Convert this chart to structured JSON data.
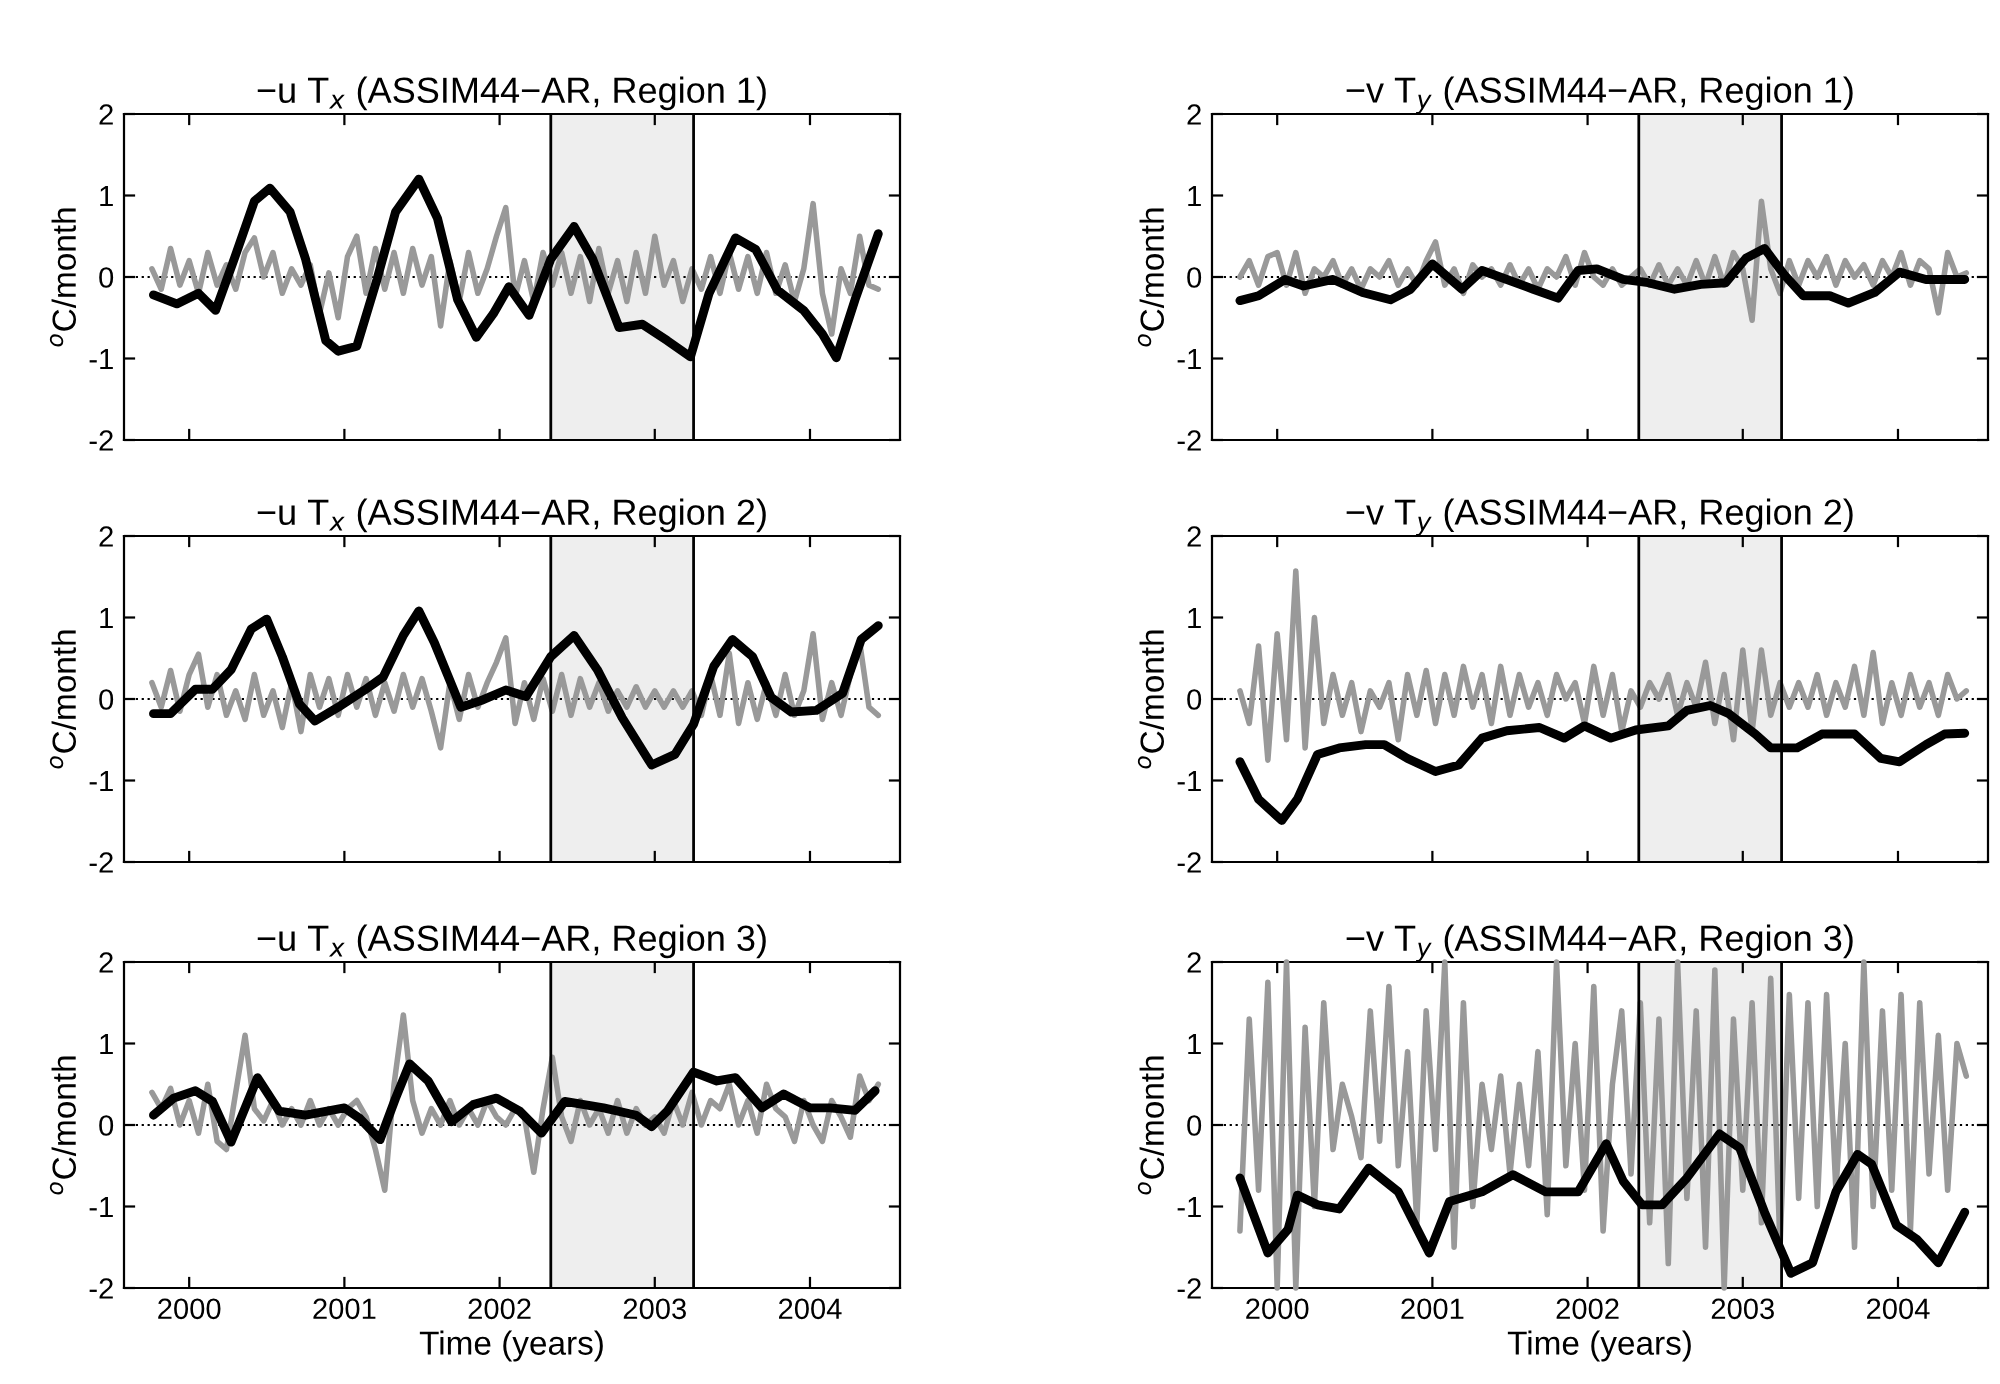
{
  "chart_data": [
    {
      "type": "line",
      "title": "−u T$_{x}$ (ASSIM44−AR, Region 1)",
      "ylabel": "$^{o}$C/month",
      "xlim": [
        1999.58,
        2004.58
      ],
      "xticks": [
        2000,
        2001,
        2002,
        2003,
        2004
      ],
      "ylim": [
        -2,
        2
      ],
      "yticks": [
        -2,
        -1,
        0,
        1,
        2
      ],
      "tick_labels": "y",
      "bands": [
        {
          "axis": "x",
          "from": 2002.33,
          "to": 2003.25,
          "color": "#eeeeee"
        }
      ],
      "ref_lines": [
        {
          "axis": "x",
          "value": 2002.33,
          "color": "#000000",
          "line_style": "solid"
        },
        {
          "axis": "x",
          "value": 2003.25,
          "color": "#000000",
          "line_style": "solid"
        },
        {
          "axis": "y",
          "value": 0,
          "color": "#000000",
          "line_style": "dotted"
        }
      ],
      "series": [
        {
          "color": "#999999",
          "x": [
            1999.76,
            1999.82,
            1999.88,
            1999.94,
            2000.0,
            2000.06,
            2000.12,
            2000.18,
            2000.24,
            2000.3,
            2000.36,
            2000.42,
            2000.48,
            2000.54,
            2000.6,
            2000.66,
            2000.72,
            2000.78,
            2000.84,
            2000.9,
            2000.96,
            2001.02,
            2001.08,
            2001.14,
            2001.2,
            2001.26,
            2001.32,
            2001.38,
            2001.44,
            2001.5,
            2001.56,
            2001.62,
            2001.68,
            2001.74,
            2001.8,
            2001.86,
            2001.92,
            2001.98,
            2002.04,
            2002.1,
            2002.16,
            2002.22,
            2002.28,
            2002.34,
            2002.4,
            2002.46,
            2002.52,
            2002.58,
            2002.64,
            2002.7,
            2002.76,
            2002.82,
            2002.88,
            2002.94,
            2003.0,
            2003.06,
            2003.12,
            2003.18,
            2003.24,
            2003.3,
            2003.36,
            2003.42,
            2003.48,
            2003.54,
            2003.6,
            2003.66,
            2003.72,
            2003.78,
            2003.84,
            2003.9,
            2003.96,
            2004.02,
            2004.08,
            2004.14,
            2004.2,
            2004.26,
            2004.32,
            2004.38,
            2004.44
          ],
          "values": [
            0.1,
            -0.15,
            0.35,
            -0.1,
            0.2,
            -0.2,
            0.3,
            -0.1,
            0.15,
            -0.15,
            0.3,
            0.48,
            0.0,
            0.3,
            -0.2,
            0.1,
            -0.1,
            0.15,
            -0.45,
            0.05,
            -0.5,
            0.25,
            0.5,
            -0.2,
            0.35,
            -0.15,
            0.3,
            -0.2,
            0.35,
            -0.1,
            0.25,
            -0.6,
            0.2,
            -0.3,
            0.3,
            -0.2,
            0.1,
            0.5,
            0.85,
            -0.25,
            0.2,
            -0.3,
            0.3,
            -0.1,
            0.3,
            -0.2,
            0.25,
            -0.3,
            0.35,
            -0.2,
            0.2,
            -0.3,
            0.3,
            -0.2,
            0.5,
            -0.1,
            0.2,
            -0.3,
            0.1,
            -0.15,
            0.25,
            -0.2,
            0.3,
            -0.15,
            0.25,
            -0.2,
            0.3,
            -0.2,
            0.15,
            -0.3,
            0.1,
            0.9,
            -0.2,
            -0.7,
            0.1,
            -0.2,
            0.5,
            -0.1,
            -0.15
          ]
        },
        {
          "color": "#000000",
          "x": [
            1999.77,
            1999.92,
            2000.06,
            2000.17,
            2000.29,
            2000.42,
            2000.52,
            2000.65,
            2000.75,
            2000.88,
            2000.96,
            2001.08,
            2001.21,
            2001.33,
            2001.48,
            2001.6,
            2001.73,
            2001.85,
            2001.96,
            2002.06,
            2002.19,
            2002.33,
            2002.48,
            2002.6,
            2002.77,
            2002.92,
            2003.08,
            2003.23,
            2003.35,
            2003.52,
            2003.65,
            2003.79,
            2003.96,
            2004.08,
            2004.17,
            2004.29,
            2004.44
          ],
          "values": [
            -0.22,
            -0.33,
            -0.2,
            -0.41,
            0.22,
            0.93,
            1.09,
            0.8,
            0.22,
            -0.78,
            -0.91,
            -0.85,
            -0.03,
            0.8,
            1.2,
            0.72,
            -0.28,
            -0.74,
            -0.45,
            -0.12,
            -0.47,
            0.22,
            0.62,
            0.22,
            -0.62,
            -0.58,
            -0.78,
            -0.98,
            -0.2,
            0.48,
            0.34,
            -0.16,
            -0.41,
            -0.7,
            -0.99,
            -0.28,
            0.53
          ]
        }
      ]
    },
    {
      "type": "line",
      "title": "−v T$_{y}$ (ASSIM44−AR, Region 1)",
      "ylabel": "$^{o}$C/month",
      "xlim": [
        1999.58,
        2004.58
      ],
      "xticks": [
        2000,
        2001,
        2002,
        2003,
        2004
      ],
      "ylim": [
        -2,
        2
      ],
      "yticks": [
        -2,
        -1,
        0,
        1,
        2
      ],
      "tick_labels": "y",
      "bands": [
        {
          "axis": "x",
          "from": 2002.33,
          "to": 2003.25,
          "color": "#eeeeee"
        }
      ],
      "ref_lines": [
        {
          "axis": "x",
          "value": 2002.33,
          "color": "#000000",
          "line_style": "solid"
        },
        {
          "axis": "x",
          "value": 2003.25,
          "color": "#000000",
          "line_style": "solid"
        },
        {
          "axis": "y",
          "value": 0,
          "color": "#000000",
          "line_style": "dotted"
        }
      ],
      "series": [
        {
          "color": "#999999",
          "x": [
            1999.76,
            1999.82,
            1999.88,
            1999.94,
            2000.0,
            2000.06,
            2000.12,
            2000.18,
            2000.24,
            2000.3,
            2000.36,
            2000.42,
            2000.48,
            2000.54,
            2000.6,
            2000.66,
            2000.72,
            2000.78,
            2000.84,
            2000.9,
            2000.96,
            2001.02,
            2001.08,
            2001.14,
            2001.2,
            2001.26,
            2001.32,
            2001.38,
            2001.44,
            2001.5,
            2001.56,
            2001.62,
            2001.68,
            2001.74,
            2001.8,
            2001.86,
            2001.92,
            2001.98,
            2002.04,
            2002.1,
            2002.16,
            2002.22,
            2002.28,
            2002.34,
            2002.4,
            2002.46,
            2002.52,
            2002.58,
            2002.64,
            2002.7,
            2002.76,
            2002.82,
            2002.88,
            2002.94,
            2003.0,
            2003.06,
            2003.12,
            2003.18,
            2003.24,
            2003.3,
            2003.36,
            2003.42,
            2003.48,
            2003.54,
            2003.6,
            2003.66,
            2003.72,
            2003.78,
            2003.84,
            2003.9,
            2003.96,
            2004.02,
            2004.08,
            2004.14,
            2004.2,
            2004.26,
            2004.32,
            2004.38,
            2004.44
          ],
          "values": [
            0.0,
            0.2,
            -0.1,
            0.25,
            0.3,
            -0.1,
            0.3,
            -0.2,
            0.1,
            0.0,
            0.2,
            -0.1,
            0.1,
            -0.15,
            0.1,
            0.0,
            0.2,
            -0.1,
            0.1,
            -0.1,
            0.2,
            0.43,
            -0.1,
            0.1,
            -0.2,
            0.15,
            0.0,
            0.1,
            -0.1,
            0.15,
            -0.1,
            0.1,
            -0.15,
            0.1,
            0.0,
            0.25,
            -0.1,
            0.3,
            0.0,
            -0.1,
            0.1,
            -0.1,
            0.0,
            0.1,
            -0.1,
            0.15,
            -0.1,
            0.1,
            -0.1,
            0.2,
            -0.1,
            0.25,
            -0.1,
            0.3,
            0.1,
            -0.53,
            0.93,
            0.1,
            -0.2,
            0.2,
            -0.1,
            0.2,
            0.0,
            0.25,
            -0.1,
            0.2,
            0.0,
            0.15,
            -0.1,
            0.2,
            0.0,
            0.3,
            -0.1,
            0.2,
            0.1,
            -0.44,
            0.3,
            0.0,
            0.05
          ]
        },
        {
          "color": "#000000",
          "x": [
            1999.76,
            1999.88,
            2000.05,
            2000.17,
            2000.36,
            2000.55,
            2000.73,
            2000.86,
            2001.0,
            2001.19,
            2001.32,
            2001.48,
            2001.65,
            2001.81,
            2001.94,
            2002.06,
            2002.23,
            2002.39,
            2002.56,
            2002.73,
            2002.89,
            2003.02,
            2003.14,
            2003.27,
            2003.39,
            2003.56,
            2003.68,
            2003.85,
            2004.01,
            2004.18,
            2004.43
          ],
          "values": [
            -0.29,
            -0.23,
            -0.03,
            -0.11,
            -0.03,
            -0.19,
            -0.28,
            -0.15,
            0.16,
            -0.15,
            0.08,
            -0.03,
            -0.15,
            -0.26,
            0.08,
            0.1,
            -0.03,
            -0.07,
            -0.15,
            -0.09,
            -0.07,
            0.23,
            0.35,
            0.02,
            -0.23,
            -0.23,
            -0.32,
            -0.19,
            0.06,
            -0.03,
            -0.03
          ]
        }
      ]
    },
    {
      "type": "line",
      "title": "−u T$_{x}$ (ASSIM44−AR, Region 2)",
      "ylabel": "$^{o}$C/month",
      "xlim": [
        1999.58,
        2004.58
      ],
      "xticks": [
        2000,
        2001,
        2002,
        2003,
        2004
      ],
      "ylim": [
        -2,
        2
      ],
      "yticks": [
        -2,
        -1,
        0,
        1,
        2
      ],
      "tick_labels": "y",
      "bands": [
        {
          "axis": "x",
          "from": 2002.33,
          "to": 2003.25,
          "color": "#eeeeee"
        }
      ],
      "ref_lines": [
        {
          "axis": "x",
          "value": 2002.33,
          "color": "#000000",
          "line_style": "solid"
        },
        {
          "axis": "x",
          "value": 2003.25,
          "color": "#000000",
          "line_style": "solid"
        },
        {
          "axis": "y",
          "value": 0,
          "color": "#000000",
          "line_style": "dotted"
        }
      ],
      "series": [
        {
          "color": "#999999",
          "x": [
            1999.76,
            1999.82,
            1999.88,
            1999.94,
            2000.0,
            2000.06,
            2000.12,
            2000.18,
            2000.24,
            2000.3,
            2000.36,
            2000.42,
            2000.48,
            2000.54,
            2000.6,
            2000.66,
            2000.72,
            2000.78,
            2000.84,
            2000.9,
            2000.96,
            2001.02,
            2001.08,
            2001.14,
            2001.2,
            2001.26,
            2001.32,
            2001.38,
            2001.44,
            2001.5,
            2001.56,
            2001.62,
            2001.68,
            2001.74,
            2001.8,
            2001.86,
            2001.92,
            2001.98,
            2002.04,
            2002.1,
            2002.16,
            2002.22,
            2002.28,
            2002.34,
            2002.4,
            2002.46,
            2002.52,
            2002.58,
            2002.64,
            2002.7,
            2002.76,
            2002.82,
            2002.88,
            2002.94,
            2003.0,
            2003.06,
            2003.12,
            2003.18,
            2003.24,
            2003.3,
            2003.36,
            2003.42,
            2003.48,
            2003.54,
            2003.6,
            2003.66,
            2003.72,
            2003.78,
            2003.84,
            2003.9,
            2003.96,
            2004.02,
            2004.08,
            2004.14,
            2004.2,
            2004.26,
            2004.32,
            2004.38,
            2004.44
          ],
          "values": [
            0.2,
            -0.1,
            0.35,
            -0.15,
            0.3,
            0.55,
            -0.1,
            0.3,
            -0.2,
            0.1,
            -0.25,
            0.3,
            -0.2,
            0.1,
            -0.35,
            0.2,
            -0.4,
            0.3,
            -0.1,
            0.25,
            -0.2,
            0.3,
            -0.1,
            0.25,
            -0.2,
            0.2,
            -0.15,
            0.3,
            -0.1,
            0.25,
            -0.15,
            -0.6,
            0.2,
            -0.25,
            0.3,
            -0.1,
            0.2,
            0.45,
            0.75,
            -0.3,
            0.2,
            -0.25,
            0.25,
            -0.15,
            0.3,
            -0.2,
            0.25,
            -0.1,
            0.2,
            -0.15,
            0.1,
            -0.1,
            0.15,
            -0.1,
            0.1,
            -0.1,
            0.1,
            -0.1,
            0.1,
            -0.2,
            0.3,
            -0.2,
            0.56,
            -0.3,
            0.2,
            -0.25,
            0.2,
            -0.2,
            0.3,
            -0.2,
            0.1,
            0.8,
            -0.25,
            0.2,
            -0.2,
            0.3,
            0.7,
            -0.1,
            -0.2
          ]
        },
        {
          "color": "#000000",
          "x": [
            1999.77,
            1999.88,
            2000.04,
            2000.15,
            2000.27,
            2000.4,
            2000.5,
            2000.6,
            2000.71,
            2000.81,
            2000.96,
            2001.13,
            2001.25,
            2001.38,
            2001.48,
            2001.58,
            2001.75,
            2001.88,
            2002.04,
            2002.17,
            2002.33,
            2002.48,
            2002.63,
            2002.79,
            2002.98,
            2003.13,
            2003.25,
            2003.38,
            2003.5,
            2003.63,
            2003.75,
            2003.88,
            2004.04,
            2004.21,
            2004.33,
            2004.44
          ],
          "values": [
            -0.18,
            -0.18,
            0.12,
            0.12,
            0.36,
            0.86,
            0.98,
            0.52,
            -0.06,
            -0.27,
            -0.1,
            0.11,
            0.27,
            0.78,
            1.08,
            0.69,
            -0.1,
            -0.02,
            0.11,
            0.03,
            0.52,
            0.78,
            0.36,
            -0.23,
            -0.81,
            -0.68,
            -0.31,
            0.4,
            0.73,
            0.52,
            0.02,
            -0.16,
            -0.14,
            0.07,
            0.73,
            0.9
          ]
        }
      ]
    },
    {
      "type": "line",
      "title": "−v T$_{y}$ (ASSIM44−AR, Region 2)",
      "ylabel": "$^{o}$C/month",
      "xlim": [
        1999.58,
        2004.58
      ],
      "xticks": [
        2000,
        2001,
        2002,
        2003,
        2004
      ],
      "ylim": [
        -2,
        2
      ],
      "yticks": [
        -2,
        -1,
        0,
        1,
        2
      ],
      "tick_labels": "y",
      "bands": [
        {
          "axis": "x",
          "from": 2002.33,
          "to": 2003.25,
          "color": "#eeeeee"
        }
      ],
      "ref_lines": [
        {
          "axis": "x",
          "value": 2002.33,
          "color": "#000000",
          "line_style": "solid"
        },
        {
          "axis": "x",
          "value": 2003.25,
          "color": "#000000",
          "line_style": "solid"
        },
        {
          "axis": "y",
          "value": 0,
          "color": "#000000",
          "line_style": "dotted"
        }
      ],
      "series": [
        {
          "color": "#999999",
          "x": [
            1999.76,
            1999.82,
            1999.88,
            1999.94,
            2000.0,
            2000.06,
            2000.12,
            2000.18,
            2000.24,
            2000.3,
            2000.36,
            2000.42,
            2000.48,
            2000.54,
            2000.6,
            2000.66,
            2000.72,
            2000.78,
            2000.84,
            2000.9,
            2000.96,
            2001.02,
            2001.08,
            2001.14,
            2001.2,
            2001.26,
            2001.32,
            2001.38,
            2001.44,
            2001.5,
            2001.56,
            2001.62,
            2001.68,
            2001.74,
            2001.8,
            2001.86,
            2001.92,
            2001.98,
            2002.04,
            2002.1,
            2002.16,
            2002.22,
            2002.28,
            2002.34,
            2002.4,
            2002.46,
            2002.52,
            2002.58,
            2002.64,
            2002.7,
            2002.76,
            2002.82,
            2002.88,
            2002.94,
            2003.0,
            2003.06,
            2003.12,
            2003.18,
            2003.24,
            2003.3,
            2003.36,
            2003.42,
            2003.48,
            2003.54,
            2003.6,
            2003.66,
            2003.72,
            2003.78,
            2003.84,
            2003.9,
            2003.96,
            2004.02,
            2004.08,
            2004.14,
            2004.2,
            2004.26,
            2004.32,
            2004.38,
            2004.44
          ],
          "values": [
            0.1,
            -0.3,
            0.65,
            -0.75,
            0.8,
            -0.5,
            1.57,
            -0.6,
            1.0,
            -0.3,
            0.3,
            -0.2,
            0.2,
            -0.4,
            0.1,
            -0.1,
            0.2,
            -0.5,
            0.3,
            -0.2,
            0.35,
            -0.3,
            0.3,
            -0.2,
            0.4,
            -0.1,
            0.3,
            -0.3,
            0.4,
            -0.2,
            0.3,
            -0.1,
            0.2,
            -0.2,
            0.3,
            0.0,
            0.2,
            -0.3,
            0.4,
            -0.2,
            0.3,
            -0.4,
            0.1,
            -0.1,
            0.2,
            0.0,
            0.3,
            -0.2,
            0.2,
            -0.1,
            0.45,
            -0.3,
            0.3,
            -0.5,
            0.6,
            -0.4,
            0.6,
            -0.2,
            0.2,
            -0.1,
            0.2,
            -0.1,
            0.3,
            -0.2,
            0.2,
            -0.1,
            0.4,
            -0.2,
            0.57,
            -0.3,
            0.2,
            -0.2,
            0.3,
            -0.1,
            0.2,
            -0.2,
            0.3,
            0.0,
            0.1
          ]
        },
        {
          "color": "#000000",
          "x": [
            1999.76,
            1999.88,
            2000.03,
            2000.13,
            2000.26,
            2000.4,
            2000.57,
            2000.69,
            2000.84,
            2001.02,
            2001.17,
            2001.32,
            2001.48,
            2001.69,
            2001.85,
            2001.98,
            2002.15,
            2002.31,
            2002.52,
            2002.64,
            2002.79,
            2002.91,
            2003.08,
            2003.18,
            2003.35,
            2003.51,
            2003.72,
            2003.89,
            2004.01,
            2004.18,
            2004.3,
            2004.43
          ],
          "values": [
            -0.77,
            -1.23,
            -1.49,
            -1.23,
            -0.68,
            -0.6,
            -0.56,
            -0.56,
            -0.73,
            -0.89,
            -0.81,
            -0.48,
            -0.39,
            -0.35,
            -0.48,
            -0.33,
            -0.48,
            -0.38,
            -0.33,
            -0.14,
            -0.08,
            -0.18,
            -0.43,
            -0.6,
            -0.6,
            -0.43,
            -0.43,
            -0.73,
            -0.77,
            -0.56,
            -0.43,
            -0.42
          ]
        }
      ]
    },
    {
      "type": "line",
      "title": "−u T$_{x}$ (ASSIM44−AR, Region 3)",
      "xlabel": "Time (years)",
      "ylabel": "$^{o}$C/month",
      "xlim": [
        1999.58,
        2004.58
      ],
      "xticks": [
        2000,
        2001,
        2002,
        2003,
        2004
      ],
      "ylim": [
        -2,
        2
      ],
      "yticks": [
        -2,
        -1,
        0,
        1,
        2
      ],
      "bands": [
        {
          "axis": "x",
          "from": 2002.33,
          "to": 2003.25,
          "color": "#eeeeee"
        }
      ],
      "ref_lines": [
        {
          "axis": "x",
          "value": 2002.33,
          "color": "#000000",
          "line_style": "solid"
        },
        {
          "axis": "x",
          "value": 2003.25,
          "color": "#000000",
          "line_style": "solid"
        },
        {
          "axis": "y",
          "value": 0,
          "color": "#000000",
          "line_style": "dotted"
        }
      ],
      "series": [
        {
          "color": "#999999",
          "x": [
            1999.76,
            1999.82,
            1999.88,
            1999.94,
            2000.0,
            2000.06,
            2000.12,
            2000.18,
            2000.24,
            2000.3,
            2000.36,
            2000.42,
            2000.48,
            2000.54,
            2000.6,
            2000.66,
            2000.72,
            2000.78,
            2000.84,
            2000.9,
            2000.96,
            2001.02,
            2001.08,
            2001.14,
            2001.2,
            2001.26,
            2001.32,
            2001.38,
            2001.44,
            2001.5,
            2001.56,
            2001.62,
            2001.68,
            2001.74,
            2001.8,
            2001.86,
            2001.92,
            2001.98,
            2002.04,
            2002.1,
            2002.16,
            2002.22,
            2002.28,
            2002.34,
            2002.4,
            2002.46,
            2002.52,
            2002.58,
            2002.64,
            2002.7,
            2002.76,
            2002.82,
            2002.88,
            2002.94,
            2003.0,
            2003.06,
            2003.12,
            2003.18,
            2003.24,
            2003.3,
            2003.36,
            2003.42,
            2003.48,
            2003.54,
            2003.6,
            2003.66,
            2003.72,
            2003.78,
            2003.84,
            2003.9,
            2003.96,
            2004.02,
            2004.08,
            2004.14,
            2004.2,
            2004.26,
            2004.32,
            2004.38,
            2004.44
          ],
          "values": [
            0.4,
            0.2,
            0.45,
            0.0,
            0.3,
            -0.1,
            0.5,
            -0.2,
            -0.3,
            0.4,
            1.1,
            0.2,
            0.05,
            0.3,
            0.0,
            0.2,
            0.0,
            0.3,
            0.0,
            0.2,
            0.0,
            0.2,
            0.3,
            0.1,
            -0.3,
            -0.8,
            0.5,
            1.35,
            0.3,
            -0.1,
            0.2,
            0.0,
            0.3,
            0.0,
            0.2,
            0.0,
            0.3,
            0.1,
            0.0,
            0.2,
            0.1,
            -0.58,
            0.2,
            0.83,
            0.1,
            -0.2,
            0.3,
            0.0,
            0.2,
            -0.1,
            0.3,
            -0.1,
            0.2,
            0.0,
            0.1,
            -0.1,
            0.3,
            0.0,
            0.4,
            0.0,
            0.3,
            0.2,
            0.5,
            0.0,
            0.3,
            -0.1,
            0.5,
            0.2,
            0.1,
            -0.2,
            0.3,
            0.0,
            -0.2,
            0.3,
            0.1,
            -0.15,
            0.6,
            0.3,
            0.5
          ]
        },
        {
          "color": "#000000",
          "x": [
            1999.77,
            1999.9,
            2000.04,
            2000.15,
            2000.27,
            2000.44,
            2000.58,
            2000.75,
            2001.0,
            2001.1,
            2001.23,
            2001.33,
            2001.42,
            2001.54,
            2001.69,
            2001.83,
            2001.98,
            2002.13,
            2002.27,
            2002.42,
            2002.67,
            2002.88,
            2002.98,
            2003.08,
            2003.25,
            2003.4,
            2003.52,
            2003.69,
            2003.83,
            2004.0,
            2004.13,
            2004.29,
            2004.42
          ],
          "values": [
            0.12,
            0.33,
            0.42,
            0.29,
            -0.21,
            0.58,
            0.17,
            0.12,
            0.21,
            0.08,
            -0.18,
            0.33,
            0.75,
            0.54,
            0.04,
            0.25,
            0.33,
            0.17,
            -0.1,
            0.29,
            0.21,
            0.12,
            -0.02,
            0.17,
            0.65,
            0.54,
            0.58,
            0.21,
            0.38,
            0.21,
            0.21,
            0.18,
            0.42
          ]
        }
      ]
    },
    {
      "type": "line",
      "title": "−v T$_{y}$ (ASSIM44−AR, Region 3)",
      "xlabel": "Time (years)",
      "ylabel": "$^{o}$C/month",
      "xlim": [
        1999.58,
        2004.58
      ],
      "xticks": [
        2000,
        2001,
        2002,
        2003,
        2004
      ],
      "ylim": [
        -2,
        2
      ],
      "yticks": [
        -2,
        -1,
        0,
        1,
        2
      ],
      "bands": [
        {
          "axis": "x",
          "from": 2002.33,
          "to": 2003.25,
          "color": "#eeeeee"
        }
      ],
      "ref_lines": [
        {
          "axis": "x",
          "value": 2002.33,
          "color": "#000000",
          "line_style": "solid"
        },
        {
          "axis": "x",
          "value": 2003.25,
          "color": "#000000",
          "line_style": "solid"
        },
        {
          "axis": "y",
          "value": 0,
          "color": "#000000",
          "line_style": "dotted"
        }
      ],
      "series": [
        {
          "color": "#999999",
          "x": [
            1999.76,
            1999.82,
            1999.88,
            1999.94,
            2000.0,
            2000.06,
            2000.12,
            2000.18,
            2000.24,
            2000.3,
            2000.36,
            2000.42,
            2000.48,
            2000.54,
            2000.6,
            2000.66,
            2000.72,
            2000.78,
            2000.84,
            2000.9,
            2000.96,
            2001.02,
            2001.08,
            2001.14,
            2001.2,
            2001.26,
            2001.32,
            2001.38,
            2001.44,
            2001.5,
            2001.56,
            2001.62,
            2001.68,
            2001.74,
            2001.8,
            2001.86,
            2001.92,
            2001.98,
            2002.04,
            2002.1,
            2002.16,
            2002.22,
            2002.28,
            2002.34,
            2002.4,
            2002.46,
            2002.52,
            2002.58,
            2002.64,
            2002.7,
            2002.76,
            2002.82,
            2002.88,
            2002.94,
            2003.0,
            2003.06,
            2003.12,
            2003.18,
            2003.24,
            2003.3,
            2003.36,
            2003.42,
            2003.48,
            2003.54,
            2003.6,
            2003.66,
            2003.72,
            2003.78,
            2003.84,
            2003.9,
            2003.96,
            2004.02,
            2004.08,
            2004.14,
            2004.2,
            2004.26,
            2004.32,
            2004.38,
            2004.44
          ],
          "values": [
            -1.3,
            1.3,
            -0.8,
            1.75,
            -2.0,
            2.0,
            -2.0,
            1.2,
            -1.0,
            1.5,
            -0.3,
            0.5,
            0.1,
            -0.4,
            1.4,
            -0.2,
            1.7,
            -0.5,
            0.9,
            -1.2,
            1.4,
            -0.3,
            2.0,
            -1.5,
            1.5,
            -1.0,
            0.5,
            -0.3,
            0.6,
            -0.6,
            0.5,
            -0.5,
            0.9,
            -1.1,
            2.0,
            -0.5,
            1.0,
            -0.8,
            1.7,
            -1.3,
            0.5,
            1.4,
            -0.6,
            1.5,
            -1.2,
            1.3,
            -1.7,
            2.0,
            -0.9,
            1.4,
            -1.5,
            1.9,
            -2.0,
            1.3,
            -0.8,
            1.5,
            -1.2,
            1.8,
            -1.5,
            1.6,
            -0.9,
            1.5,
            -1.0,
            1.6,
            -0.8,
            1.0,
            -1.5,
            2.0,
            -1.0,
            1.4,
            -0.8,
            1.6,
            -1.3,
            1.5,
            -0.6,
            1.1,
            -0.8,
            1.0,
            0.6
          ]
        },
        {
          "color": "#000000",
          "x": [
            1999.76,
            1999.94,
            2000.07,
            2000.13,
            2000.26,
            2000.4,
            2000.59,
            2000.78,
            2000.98,
            2001.11,
            2001.32,
            2001.52,
            2001.73,
            2001.94,
            2002.12,
            2002.23,
            2002.35,
            2002.48,
            2002.64,
            2002.85,
            2002.98,
            2003.14,
            2003.31,
            2003.45,
            2003.6,
            2003.74,
            2003.83,
            2003.99,
            2004.12,
            2004.26,
            2004.43
          ],
          "values": [
            -0.65,
            -1.57,
            -1.28,
            -0.86,
            -0.98,
            -1.03,
            -0.53,
            -0.82,
            -1.57,
            -0.94,
            -0.82,
            -0.61,
            -0.82,
            -0.82,
            -0.23,
            -0.69,
            -0.98,
            -0.98,
            -0.65,
            -0.11,
            -0.28,
            -1.07,
            -1.82,
            -1.69,
            -0.82,
            -0.36,
            -0.48,
            -1.23,
            -1.4,
            -1.69,
            -1.07
          ]
        }
      ]
    }
  ]
}
